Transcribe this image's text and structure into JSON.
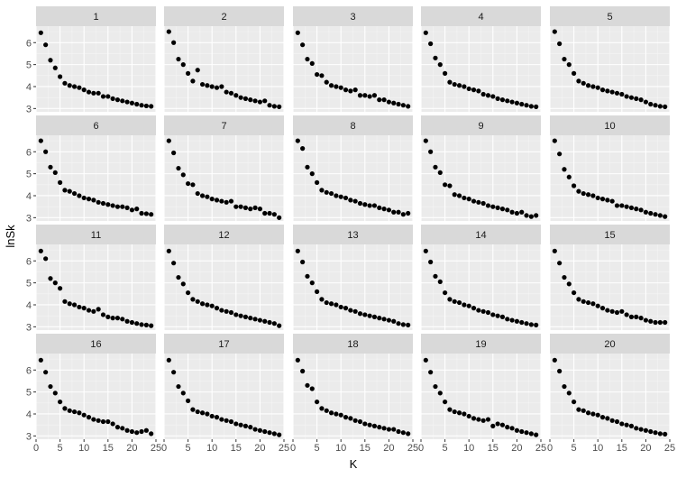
{
  "chart_data": {
    "type": "scatter",
    "layout": "facet_wrap",
    "nrow": 4,
    "ncol": 5,
    "xlabel": "K",
    "ylabel": "lnSk",
    "xlim": [
      0,
      25
    ],
    "ylim": [
      2.85,
      6.75
    ],
    "xticks": [
      0,
      5,
      10,
      15,
      20,
      25
    ],
    "yticks": [
      3,
      4,
      5,
      6
    ],
    "grid": true,
    "x": [
      1,
      2,
      3,
      4,
      5,
      6,
      7,
      8,
      9,
      10,
      11,
      12,
      13,
      14,
      15,
      16,
      17,
      18,
      19,
      20,
      21,
      22,
      23,
      24
    ],
    "colors": {
      "panel_bg": "#ebebeb",
      "strip_bg": "#d9d9d9",
      "grid_major": "#ffffff",
      "grid_minor": "#f5f5f5",
      "point": "#000000",
      "tick": "#333333"
    },
    "facets": [
      {
        "label": "1",
        "values": [
          6.45,
          5.9,
          5.2,
          4.85,
          4.45,
          4.15,
          4.05,
          4.0,
          3.95,
          3.85,
          3.75,
          3.7,
          3.7,
          3.55,
          3.55,
          3.45,
          3.4,
          3.35,
          3.3,
          3.25,
          3.2,
          3.15,
          3.12,
          3.1
        ]
      },
      {
        "label": "2",
        "values": [
          6.5,
          6.0,
          5.25,
          5.0,
          4.6,
          4.25,
          4.75,
          4.1,
          4.05,
          4.0,
          3.95,
          4.0,
          3.75,
          3.7,
          3.6,
          3.5,
          3.45,
          3.4,
          3.35,
          3.3,
          3.35,
          3.15,
          3.1,
          3.08
        ]
      },
      {
        "label": "3",
        "values": [
          6.45,
          5.9,
          5.25,
          5.05,
          4.55,
          4.5,
          4.2,
          4.05,
          4.0,
          3.95,
          3.85,
          3.8,
          3.85,
          3.6,
          3.6,
          3.55,
          3.6,
          3.4,
          3.4,
          3.3,
          3.25,
          3.2,
          3.15,
          3.1
        ]
      },
      {
        "label": "4",
        "values": [
          6.45,
          5.95,
          5.3,
          5.0,
          4.6,
          4.2,
          4.1,
          4.05,
          4.0,
          3.9,
          3.85,
          3.8,
          3.65,
          3.6,
          3.55,
          3.45,
          3.4,
          3.35,
          3.3,
          3.25,
          3.2,
          3.15,
          3.1,
          3.08
        ]
      },
      {
        "label": "5",
        "values": [
          6.5,
          5.95,
          5.25,
          5.0,
          4.6,
          4.25,
          4.15,
          4.05,
          4.0,
          3.95,
          3.85,
          3.8,
          3.75,
          3.7,
          3.65,
          3.55,
          3.5,
          3.45,
          3.4,
          3.3,
          3.2,
          3.15,
          3.1,
          3.08
        ]
      },
      {
        "label": "6",
        "values": [
          6.5,
          6.0,
          5.3,
          5.05,
          4.6,
          4.25,
          4.2,
          4.1,
          4.0,
          3.9,
          3.85,
          3.8,
          3.7,
          3.65,
          3.6,
          3.55,
          3.5,
          3.5,
          3.45,
          3.35,
          3.4,
          3.2,
          3.18,
          3.15
        ]
      },
      {
        "label": "7",
        "values": [
          6.5,
          5.95,
          5.25,
          4.95,
          4.55,
          4.5,
          4.1,
          4.0,
          3.95,
          3.85,
          3.8,
          3.75,
          3.7,
          3.75,
          3.5,
          3.5,
          3.45,
          3.4,
          3.45,
          3.4,
          3.2,
          3.2,
          3.15,
          3.0
        ]
      },
      {
        "label": "8",
        "values": [
          6.5,
          6.15,
          5.3,
          5.0,
          4.6,
          4.25,
          4.15,
          4.1,
          4.0,
          3.95,
          3.9,
          3.8,
          3.75,
          3.65,
          3.6,
          3.55,
          3.55,
          3.45,
          3.4,
          3.35,
          3.25,
          3.25,
          3.15,
          3.2
        ]
      },
      {
        "label": "9",
        "values": [
          6.5,
          6.0,
          5.3,
          5.05,
          4.5,
          4.45,
          4.05,
          4.0,
          3.9,
          3.85,
          3.75,
          3.7,
          3.65,
          3.55,
          3.5,
          3.45,
          3.4,
          3.35,
          3.25,
          3.2,
          3.25,
          3.1,
          3.05,
          3.1
        ]
      },
      {
        "label": "10",
        "values": [
          6.5,
          5.9,
          5.2,
          4.85,
          4.45,
          4.2,
          4.1,
          4.05,
          4.0,
          3.9,
          3.85,
          3.8,
          3.75,
          3.55,
          3.55,
          3.5,
          3.45,
          3.4,
          3.35,
          3.25,
          3.2,
          3.15,
          3.1,
          3.05
        ]
      },
      {
        "label": "11",
        "values": [
          6.45,
          6.1,
          5.2,
          5.0,
          4.75,
          4.15,
          4.05,
          4.0,
          3.9,
          3.85,
          3.75,
          3.7,
          3.8,
          3.55,
          3.45,
          3.4,
          3.4,
          3.35,
          3.25,
          3.2,
          3.15,
          3.1,
          3.08,
          3.05
        ]
      },
      {
        "label": "12",
        "values": [
          6.45,
          5.9,
          5.25,
          4.95,
          4.55,
          4.25,
          4.15,
          4.05,
          4.0,
          3.95,
          3.85,
          3.75,
          3.7,
          3.65,
          3.55,
          3.5,
          3.45,
          3.4,
          3.35,
          3.3,
          3.25,
          3.2,
          3.15,
          3.05
        ]
      },
      {
        "label": "13",
        "values": [
          6.45,
          5.95,
          5.3,
          5.0,
          4.6,
          4.25,
          4.1,
          4.05,
          4.0,
          3.9,
          3.85,
          3.75,
          3.7,
          3.6,
          3.55,
          3.5,
          3.45,
          3.4,
          3.35,
          3.3,
          3.25,
          3.15,
          3.1,
          3.08
        ]
      },
      {
        "label": "14",
        "values": [
          6.45,
          5.95,
          5.3,
          5.05,
          4.55,
          4.25,
          4.15,
          4.1,
          4.0,
          3.95,
          3.85,
          3.75,
          3.7,
          3.65,
          3.55,
          3.5,
          3.45,
          3.35,
          3.3,
          3.25,
          3.2,
          3.15,
          3.1,
          3.08
        ]
      },
      {
        "label": "15",
        "values": [
          6.45,
          5.9,
          5.25,
          4.95,
          4.55,
          4.25,
          4.15,
          4.1,
          4.05,
          3.95,
          3.85,
          3.75,
          3.7,
          3.65,
          3.7,
          3.55,
          3.45,
          3.45,
          3.4,
          3.3,
          3.25,
          3.2,
          3.2,
          3.2
        ]
      },
      {
        "label": "16",
        "values": [
          6.45,
          5.9,
          5.25,
          4.95,
          4.55,
          4.25,
          4.15,
          4.1,
          4.05,
          3.95,
          3.85,
          3.75,
          3.7,
          3.65,
          3.65,
          3.55,
          3.4,
          3.35,
          3.25,
          3.2,
          3.15,
          3.2,
          3.25,
          3.1
        ]
      },
      {
        "label": "17",
        "values": [
          6.45,
          5.9,
          5.25,
          4.95,
          4.6,
          4.2,
          4.1,
          4.05,
          4.0,
          3.9,
          3.85,
          3.75,
          3.7,
          3.65,
          3.55,
          3.5,
          3.45,
          3.4,
          3.3,
          3.25,
          3.2,
          3.15,
          3.1,
          3.05
        ]
      },
      {
        "label": "18",
        "values": [
          6.45,
          5.95,
          5.3,
          5.15,
          4.55,
          4.25,
          4.15,
          4.05,
          4.0,
          3.95,
          3.85,
          3.8,
          3.7,
          3.65,
          3.55,
          3.5,
          3.45,
          3.4,
          3.35,
          3.3,
          3.3,
          3.2,
          3.15,
          3.1
        ]
      },
      {
        "label": "19",
        "values": [
          6.45,
          5.9,
          5.25,
          4.95,
          4.55,
          4.2,
          4.1,
          4.05,
          4.0,
          3.9,
          3.8,
          3.75,
          3.7,
          3.75,
          3.45,
          3.55,
          3.5,
          3.4,
          3.35,
          3.25,
          3.2,
          3.15,
          3.1,
          3.05
        ]
      },
      {
        "label": "20",
        "values": [
          6.45,
          5.95,
          5.25,
          4.95,
          4.55,
          4.2,
          4.15,
          4.05,
          4.0,
          3.95,
          3.85,
          3.8,
          3.7,
          3.65,
          3.55,
          3.5,
          3.45,
          3.35,
          3.3,
          3.25,
          3.2,
          3.15,
          3.1,
          3.08
        ]
      }
    ]
  }
}
